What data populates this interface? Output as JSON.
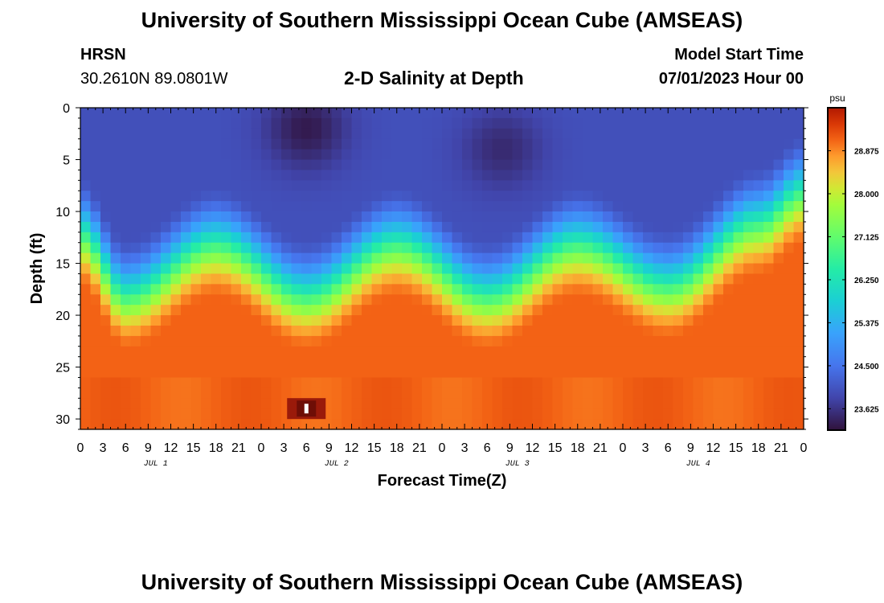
{
  "header": {
    "title": "University of Southern Mississippi Ocean Cube (AMSEAS)",
    "station": "HRSN",
    "coords": "30.2610N  89.0801W",
    "subtitle": "2-D Salinity at Depth",
    "model_start_label": "Model Start Time",
    "model_start_value": "07/01/2023 Hour 00"
  },
  "footer": {
    "title": "University of Southern Mississippi Ocean Cube (AMSEAS)"
  },
  "chart_data": {
    "type": "heatmap",
    "title": "2-D Salinity at Depth",
    "xlabel": "Forecast Time(Z)",
    "ylabel": "Depth (ft)",
    "x_range_hours": [
      0,
      96
    ],
    "x_step_hours": 3,
    "x_tick_labels": [
      "0",
      "3",
      "6",
      "9",
      "12",
      "15",
      "18",
      "21",
      "0",
      "3",
      "6",
      "9",
      "12",
      "15",
      "18",
      "21",
      "0",
      "3",
      "6",
      "9",
      "12",
      "15",
      "18",
      "21",
      "0",
      "3",
      "6",
      "9",
      "12",
      "15",
      "18",
      "21",
      "0"
    ],
    "day_labels": [
      {
        "label": "JUL 1",
        "hour": 10
      },
      {
        "label": "JUL 2",
        "hour": 34
      },
      {
        "label": "JUL 3",
        "hour": 58
      },
      {
        "label": "JUL 4",
        "hour": 82
      }
    ],
    "y_range_ft": [
      0,
      31
    ],
    "y_ticks": [
      0,
      5,
      10,
      15,
      20,
      25,
      30
    ],
    "y_tick_labels": [
      "0",
      "5",
      "10",
      "15",
      "20",
      "25",
      "30"
    ],
    "colorbar": {
      "unit": "psu",
      "min": 23.19,
      "max": 29.75,
      "ticks": [
        28.875,
        28.0,
        27.125,
        26.25,
        25.375,
        24.5,
        23.625
      ],
      "tick_labels": [
        "28.875",
        "28.000",
        "27.125",
        "26.250",
        "25.375",
        "24.500",
        "23.625"
      ]
    },
    "halocline_depth_ft": {
      "hours": [
        0,
        6,
        18,
        30,
        42,
        54,
        66,
        78,
        90,
        96
      ],
      "values": [
        15,
        21,
        16,
        21,
        16,
        21,
        16,
        20,
        14,
        11
      ]
    },
    "surface_salinity_psu": 24.0,
    "bottom_salinity_psu": 29.1,
    "fresh_lens_psu": [
      {
        "hour_center": 30,
        "depth_center_ft": 2,
        "value": 23.3
      },
      {
        "hour_center": 56,
        "depth_center_ft": 4,
        "value": 23.5
      }
    ],
    "high_salinity_spot": {
      "hour": 30,
      "depth_ft": 29,
      "value": 29.7
    }
  }
}
